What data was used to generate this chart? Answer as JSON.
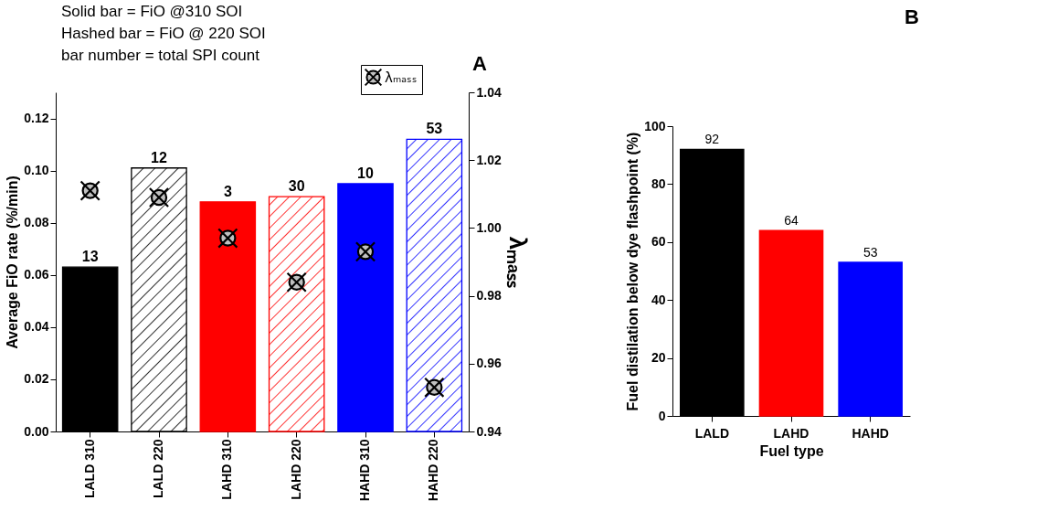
{
  "chart_data": [
    {
      "type": "bar",
      "title": "A",
      "categories": [
        "LALD 310",
        "LALD 220",
        "LAHD 310",
        "LAHD 220",
        "HAHD 310",
        "HAHD 220"
      ],
      "ylabel": "Average FiO rate (%/min)",
      "y2label": "λₘₐₛₛ",
      "ylim": [
        0,
        0.13
      ],
      "yticks": [
        {
          "value": 0,
          "label": "0.00"
        },
        {
          "value": 0.02,
          "label": "0.02"
        },
        {
          "value": 0.04,
          "label": "0.04"
        },
        {
          "value": 0.06,
          "label": "0.06"
        },
        {
          "value": 0.08,
          "label": "0.08"
        },
        {
          "value": 0.1,
          "label": "0.10"
        },
        {
          "value": 0.12,
          "label": "0.12"
        }
      ],
      "y2lim": [
        0.94,
        1.04
      ],
      "y2ticks": [
        0.94,
        0.96,
        0.98,
        {
          "value": 1,
          "label": "1.00"
        },
        1.02,
        1.04
      ],
      "legend": "top right",
      "annotations": [
        "Solid bar = FiO @310 SOI",
        "Hashed bar = FiO @ 220 SOI",
        "bar number = total SPI count",
        {
          "text": "13",
          "x": "LALD 310",
          "y": 0.063
        },
        {
          "text": "12",
          "x": "LALD 220",
          "y": 0.101
        },
        {
          "text": "3",
          "x": "LAHD 310",
          "y": 0.088
        },
        {
          "text": "30",
          "x": "LAHD 220",
          "y": 0.09
        },
        {
          "text": "10",
          "x": "HAHD 310",
          "y": 0.095
        },
        {
          "text": "53",
          "x": "HAHD 220",
          "y": 0.112
        }
      ],
      "series": [
        {
          "type": "bar",
          "colors": [
            "#000000",
            null,
            "#ff0000",
            null,
            "#0000ff",
            null
          ],
          "values": [
            0.063,
            null,
            0.088,
            null,
            0.095,
            null
          ]
        },
        {
          "type": "bar",
          "colors": [
            null,
            "#000000",
            null,
            "#ff0000",
            null,
            "#0000ff"
          ],
          "values": [
            null,
            0.101,
            null,
            0.09,
            null,
            0.112
          ]
        },
        {
          "type": "scatter",
          "name": "λₘₐₛₛ",
          "axis": "y2",
          "color": "#c0c0c0",
          "marker": "circle",
          "values": [
            1.011,
            1.009,
            0.997,
            0.984,
            0.993,
            0.953
          ]
        }
      ]
    },
    {
      "type": "bar",
      "title": "B",
      "categories": [
        "LALD",
        "LAHD",
        "HAHD"
      ],
      "xlabel": "Fuel type",
      "ylabel": "Fuel distilation below dye flashpoint (%)",
      "ylim": [
        0,
        100
      ],
      "yticks": [
        0,
        20,
        40,
        60,
        80,
        100
      ],
      "data_labels": true,
      "colors": [
        "#000000",
        "#ff0000",
        "#0000ff"
      ],
      "values": [
        92,
        64,
        53
      ]
    }
  ]
}
